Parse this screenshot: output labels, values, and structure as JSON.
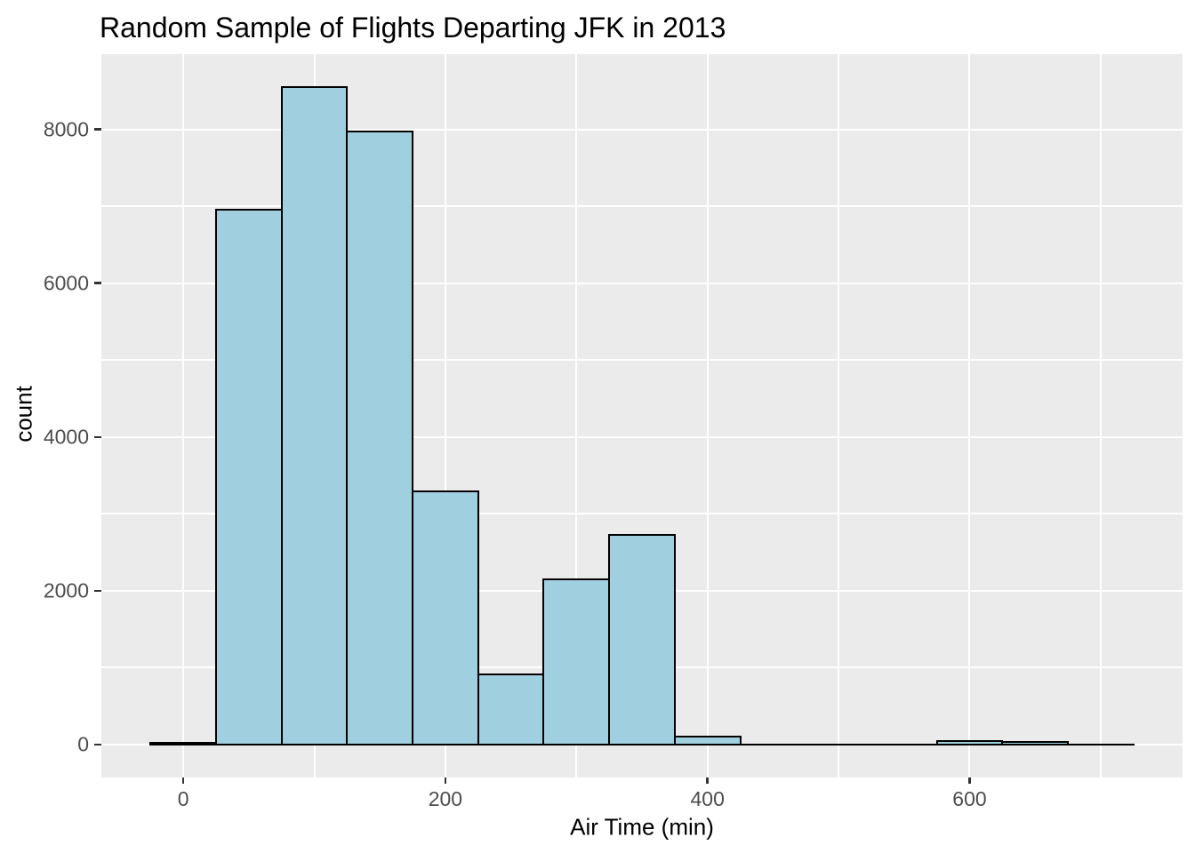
{
  "chart_data": {
    "type": "bar",
    "subtype": "histogram",
    "title": "Random Sample of Flights Departing JFK in 2013",
    "xlabel": "Air Time (min)",
    "ylabel": "count",
    "bin_width": 50,
    "bins": [
      {
        "x0": -25,
        "x1": 25,
        "count": 20
      },
      {
        "x0": 25,
        "x1": 75,
        "count": 6950
      },
      {
        "x0": 75,
        "x1": 125,
        "count": 8550
      },
      {
        "x0": 125,
        "x1": 175,
        "count": 7970
      },
      {
        "x0": 175,
        "x1": 225,
        "count": 3290
      },
      {
        "x0": 225,
        "x1": 275,
        "count": 910
      },
      {
        "x0": 275,
        "x1": 325,
        "count": 2150
      },
      {
        "x0": 325,
        "x1": 375,
        "count": 2730
      },
      {
        "x0": 375,
        "x1": 425,
        "count": 105
      },
      {
        "x0": 425,
        "x1": 475,
        "count": 5
      },
      {
        "x0": 475,
        "x1": 525,
        "count": 5
      },
      {
        "x0": 525,
        "x1": 575,
        "count": 5
      },
      {
        "x0": 575,
        "x1": 625,
        "count": 42
      },
      {
        "x0": 625,
        "x1": 675,
        "count": 30
      },
      {
        "x0": 675,
        "x1": 725,
        "count": 5
      }
    ],
    "x_ticks": [
      0,
      200,
      400,
      600
    ],
    "x_minor_ticks": [
      100,
      300,
      500,
      700
    ],
    "y_ticks": [
      0,
      2000,
      4000,
      6000,
      8000
    ],
    "y_minor_ticks": [
      1000,
      3000,
      5000,
      7000
    ],
    "xlim": [
      -62.5,
      762.5
    ],
    "ylim": [
      -427.5,
      8977.5
    ],
    "grid": true,
    "legend_position": "none",
    "colors": {
      "bar_fill": "#A0CFDF",
      "bar_stroke": "#000000",
      "panel_background": "#EBEBEB",
      "gridline": "#FFFFFF",
      "axis_text": "#4D4D4D",
      "tick_mark": "#333333",
      "title_text": "#000000"
    }
  }
}
